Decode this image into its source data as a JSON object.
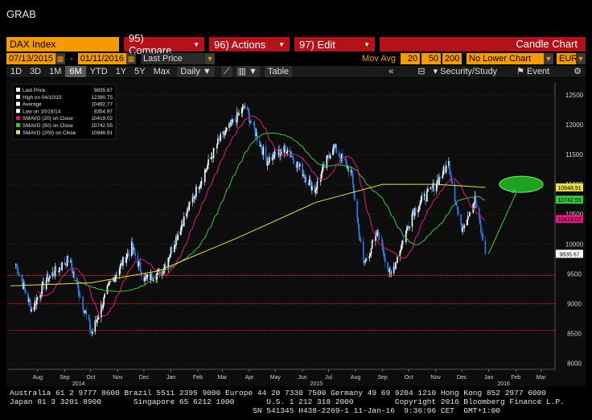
{
  "app": {
    "title": "GRAB"
  },
  "toolbar": {
    "security": "DAX Index",
    "menus": [
      {
        "label": "95) Compare"
      },
      {
        "label": "96) Actions"
      },
      {
        "label": "97) Edit"
      }
    ],
    "chart_type": "Candle Chart"
  },
  "controls": {
    "start_date": "07/13/2015",
    "end_date": "01/11/2016",
    "price_field": "Last Price",
    "mov_avg_label": "Mov Avg",
    "mov_avg": [
      "20",
      "50",
      "200"
    ],
    "lower_chart": "No Lower Chart",
    "currency": "EUR"
  },
  "periods": [
    "1D",
    "3D",
    "1M",
    "6M",
    "YTD",
    "1Y",
    "5Y",
    "Max"
  ],
  "active_period": "6M",
  "frequency": "Daily",
  "table_label": "Table",
  "security_study_label": "Security/Study",
  "event_label": "Event",
  "legend": [
    {
      "name": "Last Price",
      "value": "9835.67",
      "color": "#ffffff"
    },
    {
      "name": "High on 04/10/15",
      "value": "12390.75",
      "color": "#ffffff"
    },
    {
      "name": "Average",
      "value": "10492.77",
      "color": "#ffffff"
    },
    {
      "name": "Low on 10/16/14",
      "value": "8354.97",
      "color": "#ffffff"
    },
    {
      "name": "SMAVG (20) on Close",
      "value": "10419.02",
      "color": "#e0197d"
    },
    {
      "name": "SMAVG (50) on Close",
      "value": "10742.55",
      "color": "#38c73c"
    },
    {
      "name": "SMAVG (200) on Close",
      "value": "10948.91",
      "color": "#e8e04a"
    }
  ],
  "value_tags": [
    {
      "value": "10948.91",
      "color": "#e8e04a"
    },
    {
      "value": "10742.55",
      "color": "#38c73c"
    },
    {
      "value": "10419.02",
      "color": "#e0197d"
    },
    {
      "value": "9835.67",
      "color": "#ffffff"
    }
  ],
  "chart_data": {
    "type": "candlestick",
    "ylim": [
      7900,
      12700
    ],
    "y_ticks": [
      8000,
      8500,
      9000,
      9500,
      10000,
      10500,
      11000,
      11500,
      12000,
      12500
    ],
    "x_labels": [
      "Aug",
      "Sep",
      "Oct",
      "Nov",
      "Dec",
      "Jan",
      "Feb",
      "Mar",
      "Apr",
      "May",
      "Jun",
      "Jul",
      "Aug",
      "Sep",
      "Oct",
      "Nov",
      "Dec",
      "Jan",
      "Feb",
      "Mar"
    ],
    "year_labels": [
      "2014",
      "2015",
      "2016"
    ],
    "ref_lines": [
      9470,
      9000,
      8550
    ],
    "annotation": "green arrow from last price to ellipse near 11000",
    "colors": {
      "up": "#ffffff",
      "down": "#2f7df0",
      "sma20": "#e0197d",
      "sma50": "#38c73c",
      "sma200": "#e8e04a",
      "ref": "#cc1010"
    },
    "price_anchors": [
      {
        "date": "2014-07-20",
        "close": 9700
      },
      {
        "date": "2014-08-08",
        "close": 8900
      },
      {
        "date": "2014-08-25",
        "close": 9400
      },
      {
        "date": "2014-09-20",
        "close": 9750
      },
      {
        "date": "2014-10-16",
        "close": 8500
      },
      {
        "date": "2014-11-05",
        "close": 9300
      },
      {
        "date": "2014-12-01",
        "close": 9950
      },
      {
        "date": "2014-12-16",
        "close": 9400
      },
      {
        "date": "2015-01-05",
        "close": 9550
      },
      {
        "date": "2015-02-10",
        "close": 10800
      },
      {
        "date": "2015-03-10",
        "close": 11700
      },
      {
        "date": "2015-04-10",
        "close": 12300
      },
      {
        "date": "2015-05-05",
        "close": 11400
      },
      {
        "date": "2015-05-28",
        "close": 11600
      },
      {
        "date": "2015-06-29",
        "close": 10900
      },
      {
        "date": "2015-07-20",
        "close": 11650
      },
      {
        "date": "2015-08-10",
        "close": 11200
      },
      {
        "date": "2015-08-24",
        "close": 9650
      },
      {
        "date": "2015-09-10",
        "close": 10200
      },
      {
        "date": "2015-09-24",
        "close": 9450
      },
      {
        "date": "2015-10-20",
        "close": 10550
      },
      {
        "date": "2015-11-10",
        "close": 10900
      },
      {
        "date": "2015-11-30",
        "close": 11350
      },
      {
        "date": "2015-12-14",
        "close": 10250
      },
      {
        "date": "2015-12-30",
        "close": 10750
      },
      {
        "date": "2016-01-11",
        "close": 9835
      }
    ],
    "sma200_anchors": [
      {
        "date": "2014-07-15",
        "value": 9300
      },
      {
        "date": "2014-10-15",
        "value": 9350
      },
      {
        "date": "2015-01-01",
        "value": 9550
      },
      {
        "date": "2015-04-01",
        "value": 10100
      },
      {
        "date": "2015-07-01",
        "value": 10700
      },
      {
        "date": "2015-09-15",
        "value": 11000
      },
      {
        "date": "2015-11-15",
        "value": 11000
      },
      {
        "date": "2016-01-11",
        "value": 10949
      }
    ]
  },
  "footer": {
    "line1": "Australia 61 2 9777 8600 Brazil 5511 2395 9000 Europe 44 20 7330 7500 Germany 49 69 9204 1210 Hong Kong 852 2977 6000",
    "line2": "Japan 81 3 3201 8900       Singapore 65 6212 1000       U.S. 1 212 318 2000         Copyright 2016 Bloomberg Finance L.P.",
    "line3": "                                                     SN 541345 H438-2269-1 11-Jan-16  9:36:06 CET  GMT+1:00"
  }
}
